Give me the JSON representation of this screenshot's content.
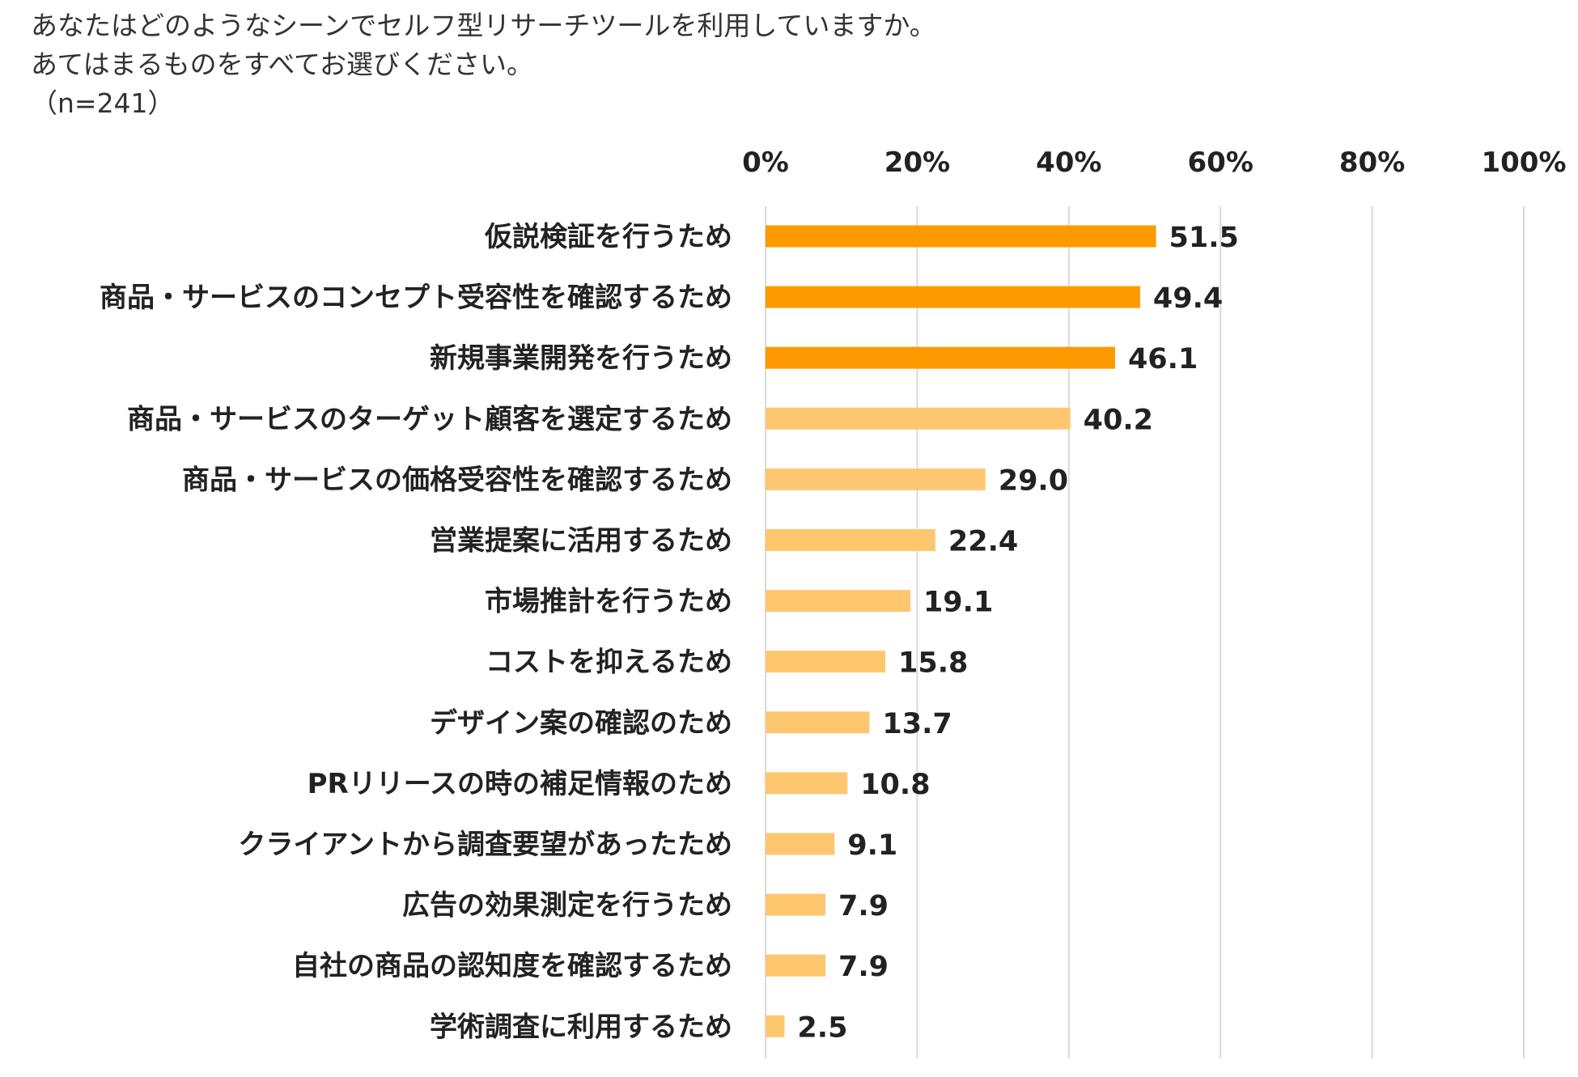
{
  "question": {
    "line1": "あなたはどのようなシーンでセルフ型リサーチツールを利用していますか。",
    "line2": "あてはまるものをすべてお選びください。",
    "sample": "（n=241）"
  },
  "chart_data": {
    "type": "bar",
    "orientation": "horizontal",
    "title": "あなたはどのようなシーンでセルフ型リサーチツールを利用していますか。あてはまるものをすべてお選びください。（n=241）",
    "xlim": [
      0,
      100
    ],
    "x_ticks": [
      "0%",
      "20%",
      "40%",
      "60%",
      "80%",
      "100%"
    ],
    "x_tick_values": [
      0,
      20,
      40,
      60,
      80,
      100
    ],
    "grid": true,
    "categories": [
      "仮説検証を行うため",
      "商品・サービスのコンセプト受容性を確認するため",
      "新規事業開発を行うため",
      "商品・サービスのターゲット顧客を選定するため",
      "商品・サービスの価格受容性を確認するため",
      "営業提案に活用するため",
      "市場推計を行うため",
      "コストを抑えるため",
      "デザイン案の確認のため",
      "PRリリースの時の補足情報のため",
      "クライアントから調査要望があったため",
      "広告の効果測定を行うため",
      "自社の商品の認知度を確認するため",
      "学術調査に利用するため"
    ],
    "values": [
      51.5,
      49.4,
      46.1,
      40.2,
      29.0,
      22.4,
      19.1,
      15.8,
      13.7,
      10.8,
      9.1,
      7.9,
      7.9,
      2.5
    ],
    "value_labels": [
      "51.5",
      "49.4",
      "46.1",
      "40.2",
      "29.0",
      "22.4",
      "19.1",
      "15.8",
      "13.7",
      "10.8",
      "9.1",
      "7.9",
      "7.9",
      "2.5"
    ],
    "highlight_count": 3,
    "colors": {
      "highlight": "#FF9900",
      "normal": "#FFC670",
      "grid": "#D9D9D9"
    }
  }
}
